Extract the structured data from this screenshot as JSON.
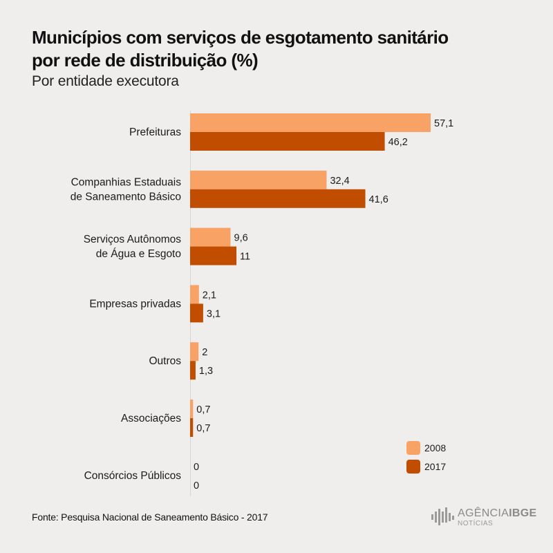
{
  "header": {
    "title_line1": "Municípios com serviços de esgotamento sanitário",
    "title_line2": "por rede de distribuição (%)",
    "subtitle": "Por entidade executora"
  },
  "chart_data": {
    "type": "bar",
    "orientation": "horizontal",
    "title": "Municípios com serviços de esgotamento sanitário por rede de distribuição (%)",
    "subtitle": "Por entidade executora",
    "categories": [
      [
        "Prefeituras"
      ],
      [
        "Companhias Estaduais",
        "de Saneamento Básico"
      ],
      [
        "Serviços Autônomos",
        "de Água e Esgoto"
      ],
      [
        "Empresas privadas"
      ],
      [
        "Outros"
      ],
      [
        "Associações"
      ],
      [
        "Consórcios Públicos"
      ]
    ],
    "series": [
      {
        "name": "2008",
        "color": "#f9a266",
        "values": [
          57.1,
          32.4,
          9.6,
          2.1,
          2.0,
          0.7,
          0
        ],
        "labels": [
          "57,1",
          "32,4",
          "9,6",
          "2,1",
          "2",
          "0,7",
          "0"
        ]
      },
      {
        "name": "2017",
        "color": "#c04d00",
        "values": [
          46.2,
          41.6,
          11.0,
          3.1,
          1.3,
          0.7,
          0
        ],
        "labels": [
          "46,2",
          "41,6",
          "11",
          "3,1",
          "1,3",
          "0,7",
          "0"
        ]
      }
    ],
    "xlim": [
      0,
      57.1
    ],
    "grid": false,
    "legend_position": "bottom-right"
  },
  "footer": {
    "source": "Fonte: Pesquisa Nacional de Saneamento Básico - 2017",
    "logo_word1": "AGÊNCIA",
    "logo_word2": "IBGE",
    "logo_sub": "NOTÍCIAS"
  }
}
